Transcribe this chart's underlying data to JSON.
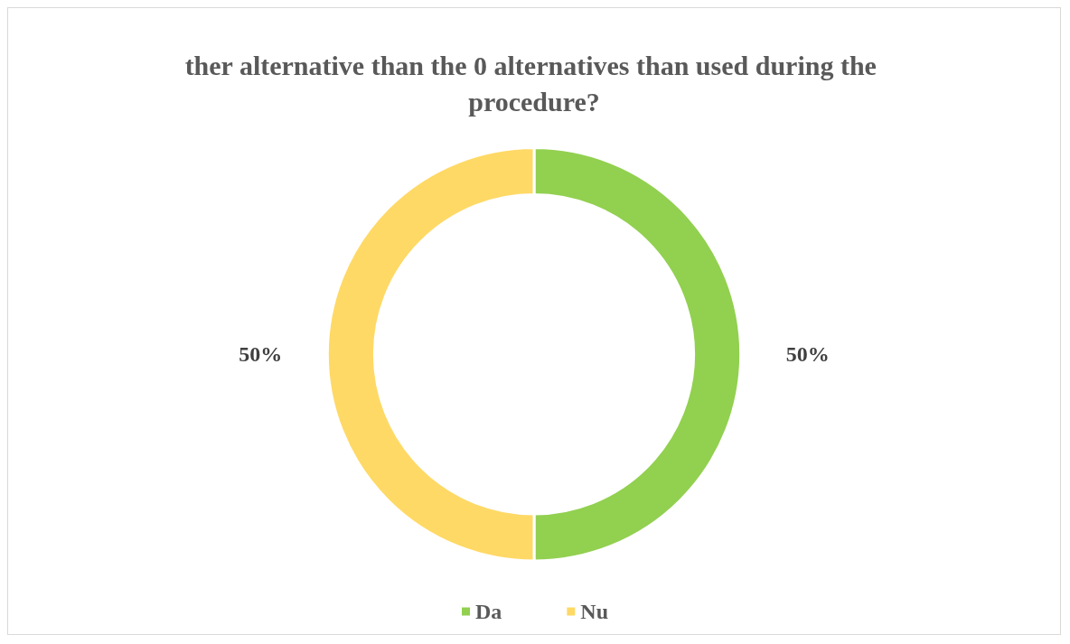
{
  "chart_data": {
    "type": "donut",
    "title": "ther alternative than the 0 alternatives than used during the procedure?",
    "categories": [
      "Da",
      "Nu"
    ],
    "values": [
      50,
      50
    ],
    "colors": [
      "#92d050",
      "#ffd966"
    ],
    "value_labels": [
      "50%",
      "50%"
    ],
    "legend": "bottom"
  }
}
